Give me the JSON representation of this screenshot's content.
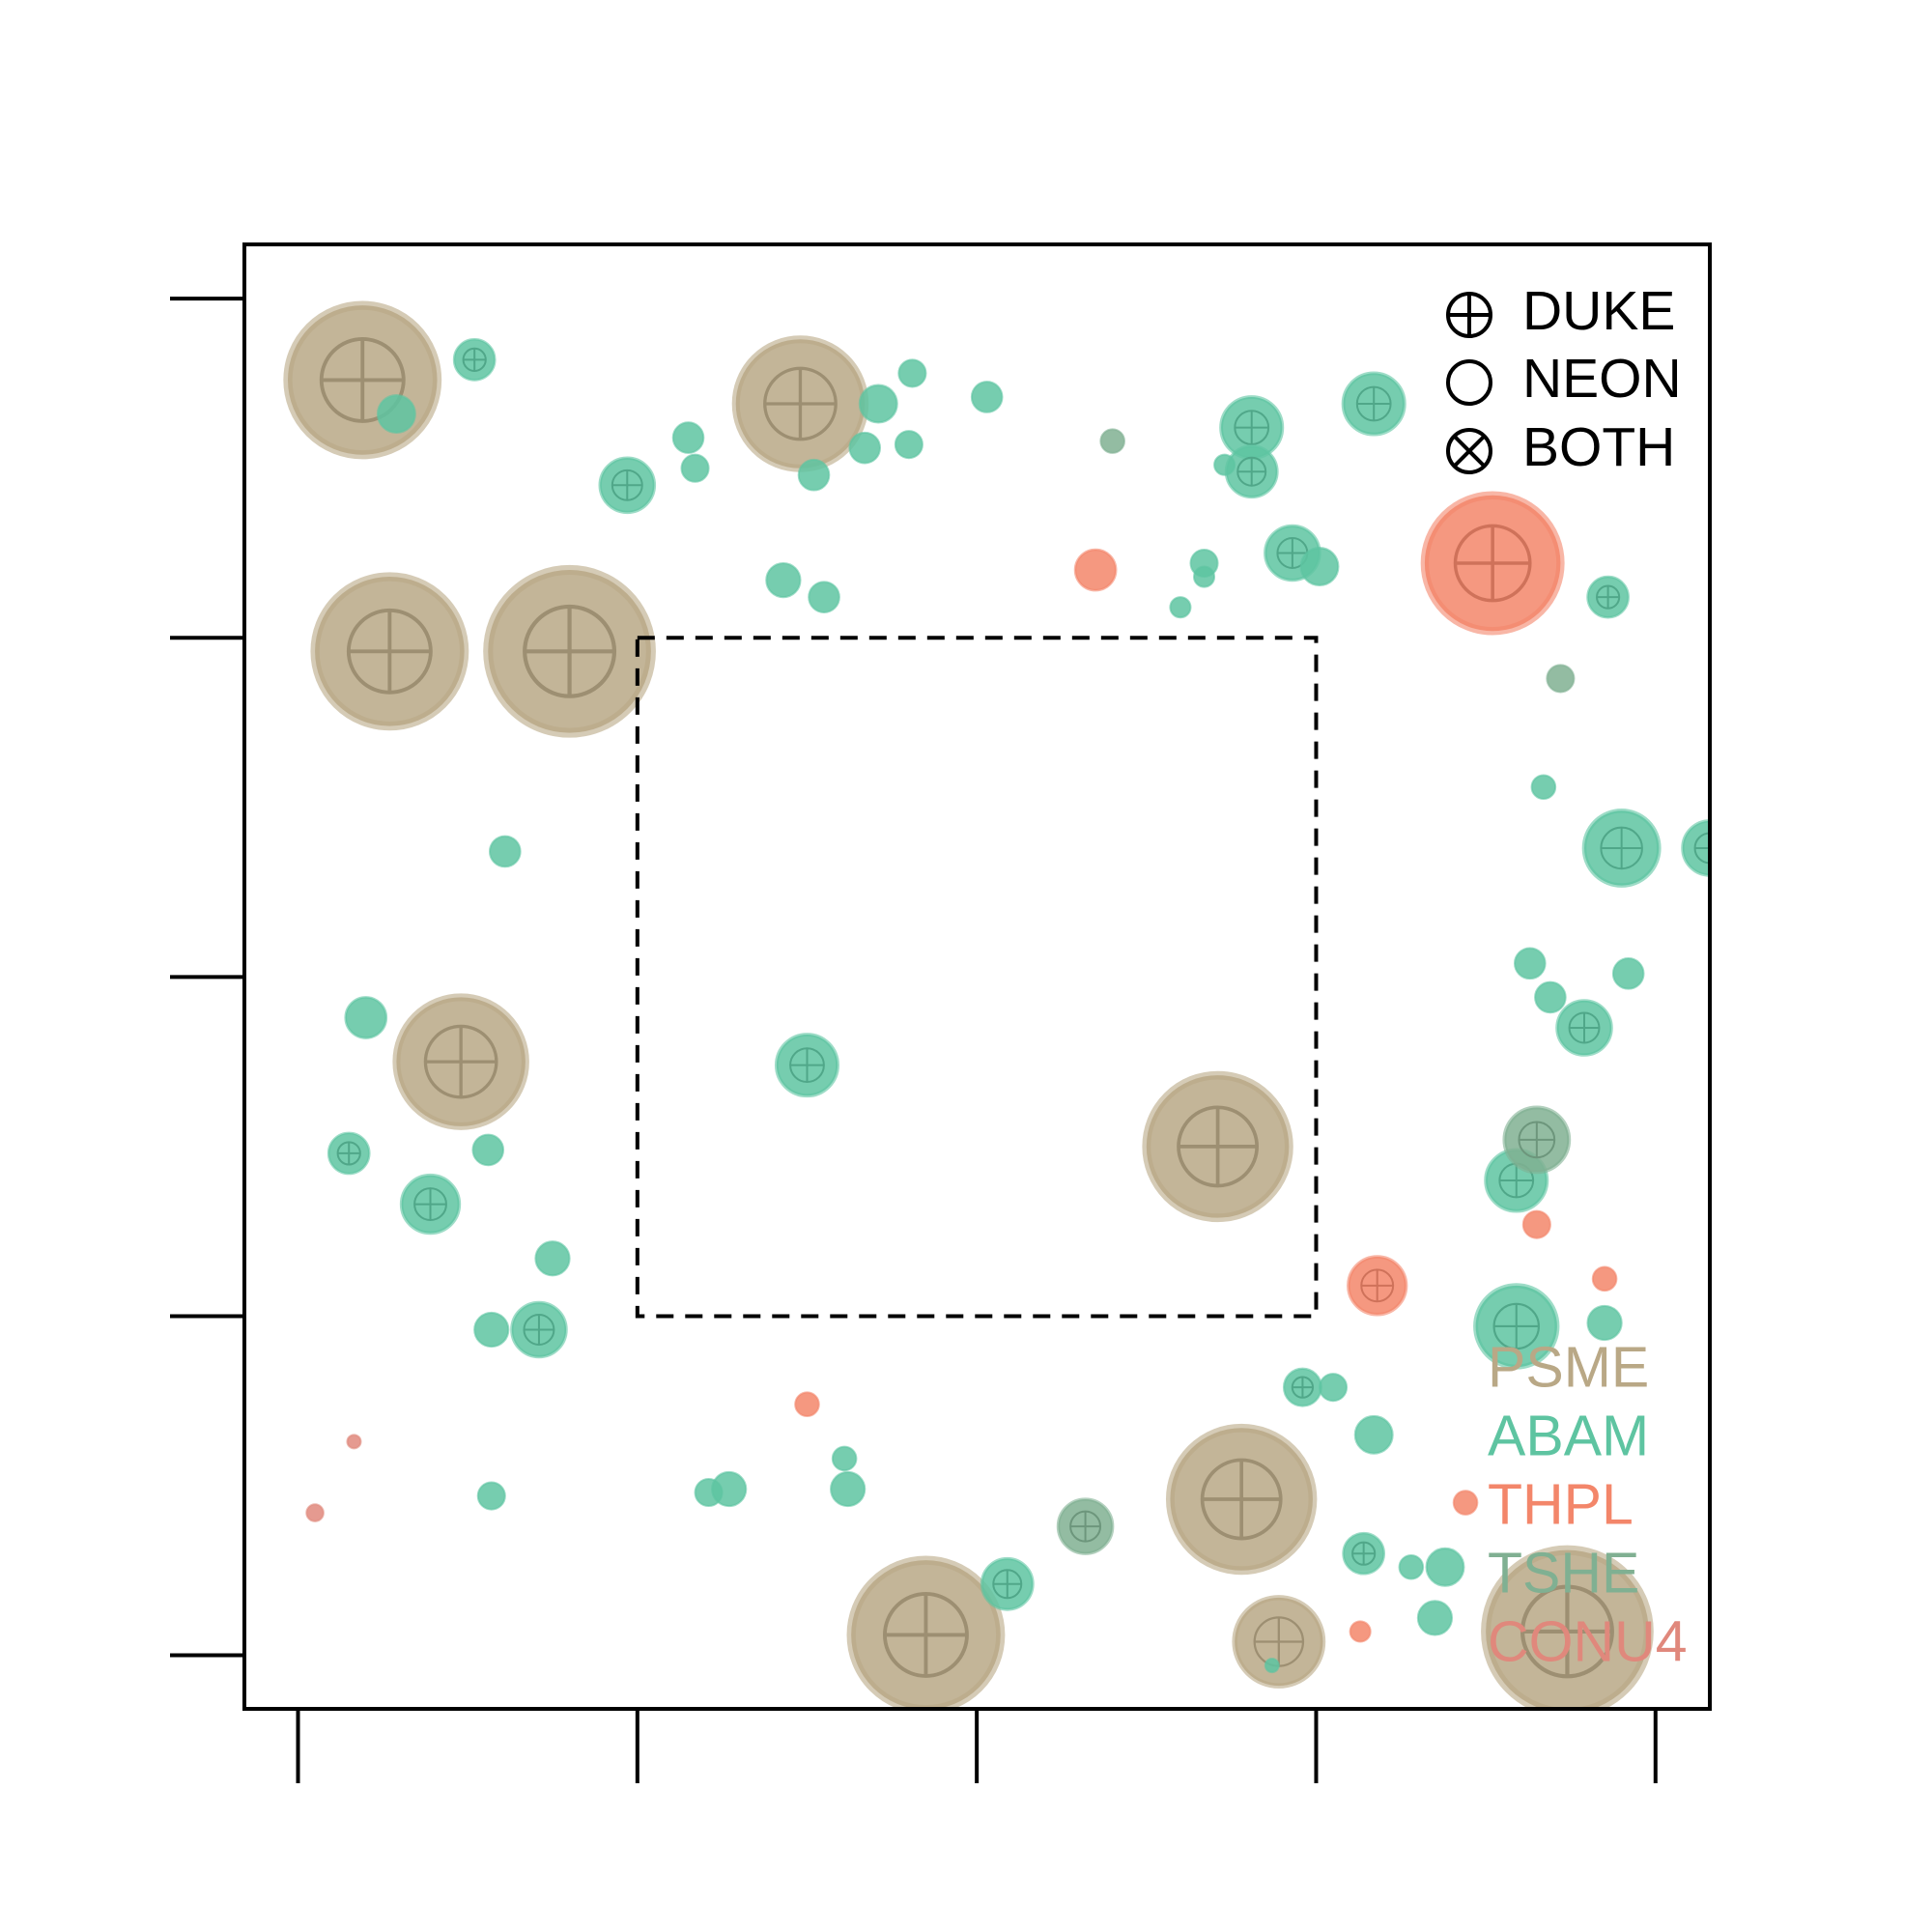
{
  "chart_data": {
    "type": "bubble",
    "xlim": [
      -1.58,
      41.6
    ],
    "ylim": [
      -1.58,
      41.6
    ],
    "xticks": [
      0,
      10,
      20,
      30,
      40
    ],
    "yticks": [
      0,
      10,
      20,
      30,
      40
    ],
    "highlight_region": {
      "x": [
        10,
        30
      ],
      "y": [
        10,
        30
      ]
    },
    "shape_legend": [
      "DUKE",
      "NEON",
      "BOTH"
    ],
    "series": [
      {
        "name": "PSME",
        "color": "#b9a886",
        "x": [
          1.9,
          14.8,
          2.7,
          8.0,
          4.8,
          27.1,
          27.8,
          18.5,
          28.9,
          37.4
        ],
        "y": [
          37.6,
          36.9,
          29.6,
          29.6,
          17.5,
          15.0,
          4.6,
          0.6,
          0.4,
          0.7
        ],
        "size": [
          2.2,
          1.9,
          2.2,
          2.4,
          1.9,
          2.1,
          2.1,
          2.2,
          1.3,
          2.4
        ],
        "markers": [
          "DUKE",
          "DUKE",
          "DUKE",
          "DUKE",
          "DUKE",
          "DUKE",
          "DUKE",
          "DUKE",
          "DUKE",
          "DUKE"
        ]
      },
      {
        "name": "ABAM",
        "color": "#5ec4a1",
        "x": [
          5.2,
          2.9,
          9.7,
          11.5,
          11.7,
          17.1,
          18.1,
          16.7,
          18.0,
          15.2,
          20.3,
          28.1,
          28.1,
          27.3,
          31.7,
          14.3,
          15.5,
          26.7,
          26.7,
          26.0,
          29.3,
          30.1,
          38.6,
          36.7,
          39.0,
          41.6,
          6.1,
          36.3,
          36.9,
          39.2,
          37.9,
          2.0,
          15.0,
          1.5,
          5.6,
          3.9,
          35.9,
          7.5,
          5.7,
          7.1,
          35.9,
          38.5,
          29.6,
          30.5,
          31.7,
          5.7,
          12.1,
          12.7,
          16.1,
          16.2,
          20.9,
          31.4,
          32.8,
          33.8,
          33.5,
          28.7
        ],
        "y": [
          38.2,
          36.6,
          34.5,
          35.9,
          35.0,
          36.9,
          37.8,
          35.6,
          35.7,
          34.8,
          37.1,
          36.2,
          34.9,
          35.1,
          36.9,
          31.7,
          31.2,
          32.2,
          31.8,
          30.9,
          32.5,
          32.1,
          31.2,
          25.6,
          23.8,
          23.8,
          23.7,
          20.4,
          19.4,
          20.1,
          18.5,
          18.8,
          17.4,
          14.8,
          14.9,
          13.3,
          14.0,
          11.7,
          9.6,
          9.6,
          9.7,
          9.8,
          7.9,
          7.9,
          6.5,
          4.7,
          4.8,
          4.9,
          5.8,
          4.9,
          2.1,
          3.0,
          2.6,
          2.6,
          1.1,
          -0.3
        ],
        "size": [
          0.6,
          0.55,
          0.8,
          0.45,
          0.4,
          0.55,
          0.4,
          0.45,
          0.4,
          0.45,
          0.45,
          0.9,
          0.75,
          0.3,
          0.9,
          0.5,
          0.45,
          0.4,
          0.3,
          0.3,
          0.8,
          0.55,
          0.6,
          0.35,
          1.1,
          0.8,
          0.45,
          0.45,
          0.45,
          0.45,
          0.8,
          0.6,
          0.9,
          0.6,
          0.45,
          0.85,
          0.9,
          0.5,
          0.5,
          0.8,
          1.2,
          0.5,
          0.55,
          0.4,
          0.55,
          0.4,
          0.4,
          0.5,
          0.35,
          0.5,
          0.75,
          0.6,
          0.35,
          0.55,
          0.5,
          0.2
        ],
        "markers": [
          "DUKE",
          "NEON",
          "DUKE",
          "NEON",
          "NEON",
          "NEON",
          "NEON",
          "NEON",
          "NEON",
          "NEON",
          "NEON",
          "DUKE",
          "DUKE",
          "NEON",
          "DUKE",
          "NEON",
          "NEON",
          "NEON",
          "NEON",
          "NEON",
          "DUKE",
          "NEON",
          "DUKE",
          "NEON",
          "DUKE",
          "DUKE",
          "NEON",
          "NEON",
          "NEON",
          "NEON",
          "DUKE",
          "NEON",
          "DUKE",
          "DUKE",
          "NEON",
          "DUKE",
          "DUKE",
          "NEON",
          "NEON",
          "DUKE",
          "DUKE",
          "NEON",
          "DUKE",
          "NEON",
          "NEON",
          "NEON",
          "NEON",
          "NEON",
          "NEON",
          "NEON",
          "DUKE",
          "DUKE",
          "NEON",
          "NEON",
          "NEON",
          "NEON"
        ]
      },
      {
        "name": "THPL",
        "color": "#f3866a",
        "x": [
          23.5,
          35.2,
          31.8,
          36.5,
          38.5,
          15.0,
          34.4,
          31.3
        ],
        "y": [
          32.0,
          32.2,
          10.9,
          12.7,
          11.1,
          7.4,
          4.5,
          0.7
        ],
        "size": [
          0.6,
          2.0,
          0.85,
          0.4,
          0.35,
          0.35,
          0.35,
          0.3
        ],
        "markers": [
          "NEON",
          "DUKE",
          "DUKE",
          "NEON",
          "NEON",
          "NEON",
          "NEON",
          "NEON"
        ]
      },
      {
        "name": "TSHE",
        "color": "#80b092",
        "x": [
          24.0,
          37.2,
          36.5,
          23.2
        ],
        "y": [
          35.8,
          28.8,
          15.2,
          3.8
        ],
        "size": [
          0.35,
          0.4,
          0.95,
          0.8
        ],
        "markers": [
          "NEON",
          "NEON",
          "DUKE",
          "DUKE"
        ]
      },
      {
        "name": "CONU4",
        "color": "#e0887c",
        "x": [
          1.65,
          0.5
        ],
        "y": [
          6.3,
          4.2
        ],
        "size": [
          0.2,
          0.25
        ],
        "markers": [
          "NEON",
          "NEON"
        ]
      }
    ]
  }
}
